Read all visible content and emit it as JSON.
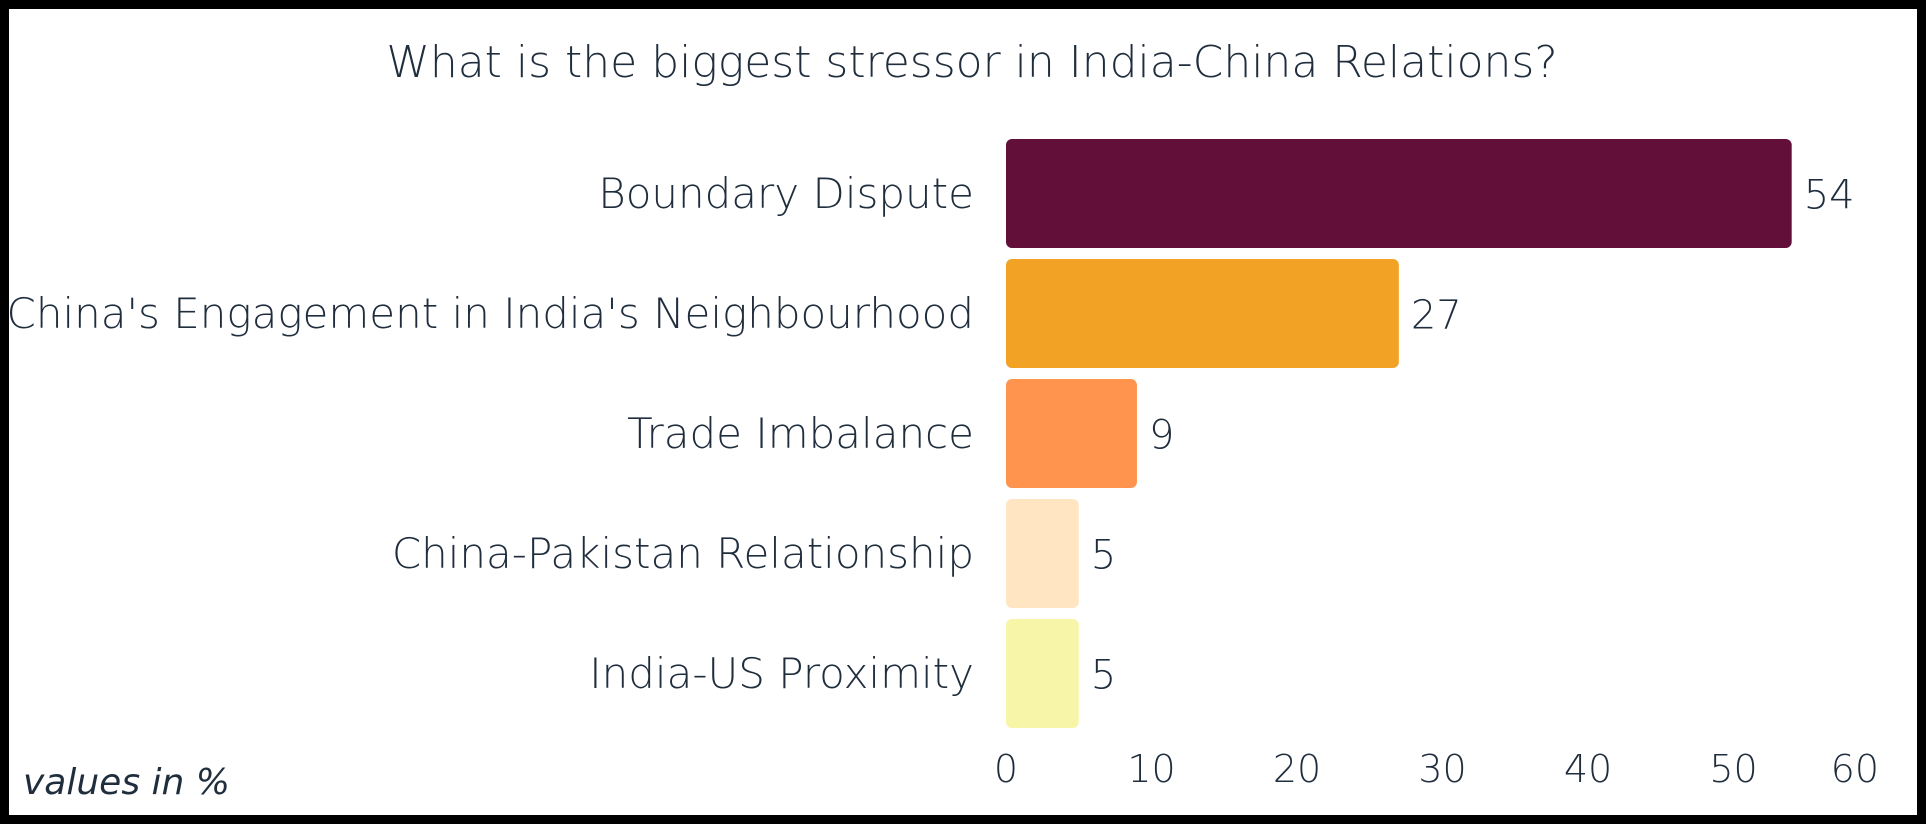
{
  "chart_data": {
    "type": "bar",
    "orientation": "horizontal",
    "title": "What is the biggest stressor in India-China Relations?",
    "categories": [
      "Boundary Dispute",
      "China's Engagement in India's Neighbourhood",
      "Trade Imbalance",
      "China-Pakistan Relationship",
      "India-US Proximity"
    ],
    "values": [
      54,
      27,
      9,
      5,
      5
    ],
    "colors": [
      "#62103a",
      "#f2a224",
      "#ff944e",
      "#ffe5c2",
      "#f7f5a8"
    ],
    "xlim": [
      0,
      60
    ],
    "xticks": [
      "0",
      "10",
      "20",
      "30",
      "40",
      "50",
      "60"
    ],
    "xlabel": "",
    "ylabel": "",
    "grid": false,
    "data_labels": true,
    "note": "values in %"
  }
}
